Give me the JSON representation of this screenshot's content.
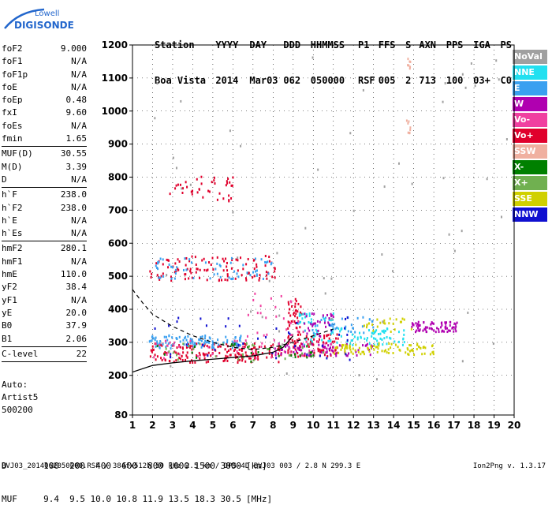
{
  "logo": {
    "line1": "Lowell",
    "line2": "DIGISONDE"
  },
  "header": {
    "row1": [
      "Station",
      "YYYY",
      "DAY",
      "DDD",
      "HHMMSS",
      "P1",
      "FFS",
      "S",
      "AXN",
      "PPS",
      "IGA",
      "PS"
    ],
    "row2": [
      "Boa Vista",
      "2014",
      "Mar03",
      "062",
      "050000",
      "RSF",
      "005",
      "2",
      "713",
      "100",
      "03+",
      "C0"
    ]
  },
  "params": [
    {
      "label": "foF2",
      "value": "9.000"
    },
    {
      "label": "foF1",
      "value": "N/A"
    },
    {
      "label": "foF1p",
      "value": "N/A"
    },
    {
      "label": "foE",
      "value": "N/A"
    },
    {
      "label": "foEp",
      "value": "0.48"
    },
    {
      "label": "fxI",
      "value": "9.60"
    },
    {
      "label": "foEs",
      "value": "N/A"
    },
    {
      "label": "fmin",
      "value": "1.65",
      "sep": true
    },
    {
      "label": "MUF(D)",
      "value": "30.55"
    },
    {
      "label": "M(D)",
      "value": "3.39"
    },
    {
      "label": "D",
      "value": "N/A",
      "sep": true
    },
    {
      "label": "h`F",
      "value": "238.0"
    },
    {
      "label": "h`F2",
      "value": "238.0"
    },
    {
      "label": "h`E",
      "value": "N/A"
    },
    {
      "label": "h`Es",
      "value": "N/A",
      "sep": true
    },
    {
      "label": "hmF2",
      "value": "280.1"
    },
    {
      "label": "hmF1",
      "value": "N/A"
    },
    {
      "label": "hmE",
      "value": "110.0"
    },
    {
      "label": "yF2",
      "value": "38.4"
    },
    {
      "label": "yF1",
      "value": "N/A"
    },
    {
      "label": "yE",
      "value": "20.0"
    },
    {
      "label": "B0",
      "value": "37.9"
    },
    {
      "label": "B1",
      "value": "2.06",
      "sep": true
    },
    {
      "label": "C-level",
      "value": "22",
      "sep": true
    }
  ],
  "autoscale": {
    "line1": "Auto:",
    "line2": "Artist5",
    "line3": "500200"
  },
  "legend": [
    {
      "label": "NoVal",
      "color": "#a0a0a0"
    },
    {
      "label": "NNE",
      "color": "#22e0f0"
    },
    {
      "label": "E",
      "color": "#3aa0f0"
    },
    {
      "label": "W",
      "color": "#b000b0"
    },
    {
      "label": "Vo-",
      "color": "#f040a0"
    },
    {
      "label": "Vo+",
      "color": "#e0002c"
    },
    {
      "label": "SSW",
      "color": "#f0b0a0"
    },
    {
      "label": "X-",
      "color": "#008000"
    },
    {
      "label": "X+",
      "color": "#70b050"
    },
    {
      "label": "SSE",
      "color": "#d0d000"
    },
    {
      "label": "NNW",
      "color": "#1010d0"
    }
  ],
  "footer": {
    "d_label": "D",
    "d_values": [
      "100",
      "200",
      "400",
      "600",
      "800",
      "1000",
      "1500",
      "3000"
    ],
    "d_unit": "[km]",
    "muf_label": "MUF",
    "muf_values": [
      "9.4",
      "9.5",
      "10.0",
      "10.8",
      "11.9",
      "13.5",
      "18.3",
      "30.5"
    ],
    "muf_unit": "[MHz]",
    "fileinfo": "BVJ03_2014062050000.RSF / 384fx512h 50 kHz 2.5 km / DPS-4D BVJ03 003 / 2.8 N 299.3 E",
    "version": "Ion2Png v. 1.3.17"
  },
  "chart_data": {
    "type": "scatter",
    "xlim": [
      1,
      20
    ],
    "ylim": [
      80,
      1200
    ],
    "x_ticks": [
      1,
      2,
      3,
      4,
      5,
      6,
      7,
      8,
      9,
      10,
      11,
      12,
      13,
      14,
      15,
      16,
      17,
      18,
      19,
      20
    ],
    "y_ticks": [
      80,
      200,
      300,
      400,
      500,
      600,
      700,
      800,
      900,
      1000,
      1100,
      1200
    ],
    "grid": true,
    "legend_position": "right",
    "series": [
      {
        "name": "Vo+",
        "color": "#e0002c",
        "clusters": [
          {
            "x": [
              1.8,
              8.4
            ],
            "y": [
              242,
              300
            ],
            "n": 180
          },
          {
            "x": [
              1.8,
              8.3
            ],
            "y": [
              490,
              565
            ],
            "n": 110
          },
          {
            "x": [
              2.8,
              6.0
            ],
            "y": [
              730,
              805
            ],
            "n": 40
          },
          {
            "x": [
              8.7,
              9.4
            ],
            "y": [
              260,
              440
            ],
            "n": 70
          },
          {
            "x": [
              9.5,
              11.2
            ],
            "y": [
              260,
              330
            ],
            "n": 60
          }
        ]
      },
      {
        "name": "E",
        "color": "#3aa0f0",
        "clusters": [
          {
            "x": [
              1.8,
              6.5
            ],
            "y": [
              285,
              325
            ],
            "n": 110
          },
          {
            "x": [
              2.0,
              8.2
            ],
            "y": [
              495,
              560
            ],
            "n": 60
          },
          {
            "x": [
              9.5,
              13.0
            ],
            "y": [
              330,
              380
            ],
            "n": 40
          }
        ]
      },
      {
        "name": "NNE",
        "color": "#22e0f0",
        "clusters": [
          {
            "x": [
              9.5,
              14.5
            ],
            "y": [
              295,
              350
            ],
            "n": 80
          },
          {
            "x": [
              9.0,
              11.0
            ],
            "y": [
              360,
              395
            ],
            "n": 25
          }
        ]
      },
      {
        "name": "W",
        "color": "#b000b0",
        "clusters": [
          {
            "x": [
              14.8,
              17.2
            ],
            "y": [
              335,
              365
            ],
            "n": 70
          },
          {
            "x": [
              8.0,
              13.0
            ],
            "y": [
              262,
              300
            ],
            "n": 70
          },
          {
            "x": [
              9.5,
              11.0
            ],
            "y": [
              320,
              400
            ],
            "n": 30
          }
        ]
      },
      {
        "name": "SSE",
        "color": "#d0d000",
        "clusters": [
          {
            "x": [
              11.0,
              16.0
            ],
            "y": [
              265,
              300
            ],
            "n": 90
          },
          {
            "x": [
              12.5,
              15.0
            ],
            "y": [
              335,
              375
            ],
            "n": 25
          }
        ]
      },
      {
        "name": "Vo-",
        "color": "#f040a0",
        "clusters": [
          {
            "x": [
              2.0,
              11.0
            ],
            "y": [
              255,
              310
            ],
            "n": 50
          },
          {
            "x": [
              6.5,
              9.5
            ],
            "y": [
              320,
              460
            ],
            "n": 25
          }
        ]
      },
      {
        "name": "NNW",
        "color": "#1010d0",
        "clusters": [
          {
            "x": [
              2.0,
              12.0
            ],
            "y": [
              250,
              380
            ],
            "n": 40
          }
        ]
      },
      {
        "name": "X+",
        "color": "#70b050",
        "clusters": [
          {
            "x": [
              2.0,
              11.0
            ],
            "y": [
              245,
              300
            ],
            "n": 30
          }
        ]
      },
      {
        "name": "X-",
        "color": "#008000",
        "clusters": [
          {
            "x": [
              2.0,
              10.0
            ],
            "y": [
              245,
              300
            ],
            "n": 25
          }
        ]
      },
      {
        "name": "SSW",
        "color": "#f0b0a0",
        "clusters": [
          {
            "x": [
              14.6,
              14.8
            ],
            "y": [
              930,
              990
            ],
            "n": 8
          },
          {
            "x": [
              14.6,
              14.8
            ],
            "y": [
              1130,
              1170
            ],
            "n": 8
          }
        ]
      },
      {
        "name": "NoVal",
        "color": "#a0a0a0",
        "clusters": [
          {
            "x": [
              1.5,
              20.0
            ],
            "y": [
              90,
              1190
            ],
            "n": 60
          }
        ]
      }
    ],
    "profile_curve": {
      "x": [
        1.0,
        2.0,
        3.0,
        4.0,
        5.0,
        6.0,
        7.0,
        8.0,
        8.5,
        9.0
      ],
      "y": [
        210,
        230,
        238,
        244,
        249,
        254,
        259,
        270,
        285,
        320
      ]
    },
    "dashed_curve": {
      "x": [
        1.0,
        1.5,
        2.0,
        3.0,
        4.0,
        5.0,
        6.0,
        7.0,
        8.0,
        9.0,
        10.0,
        11.0
      ],
      "y": [
        460,
        420,
        385,
        348,
        320,
        300,
        285,
        278,
        285,
        300,
        320,
        340
      ]
    }
  }
}
